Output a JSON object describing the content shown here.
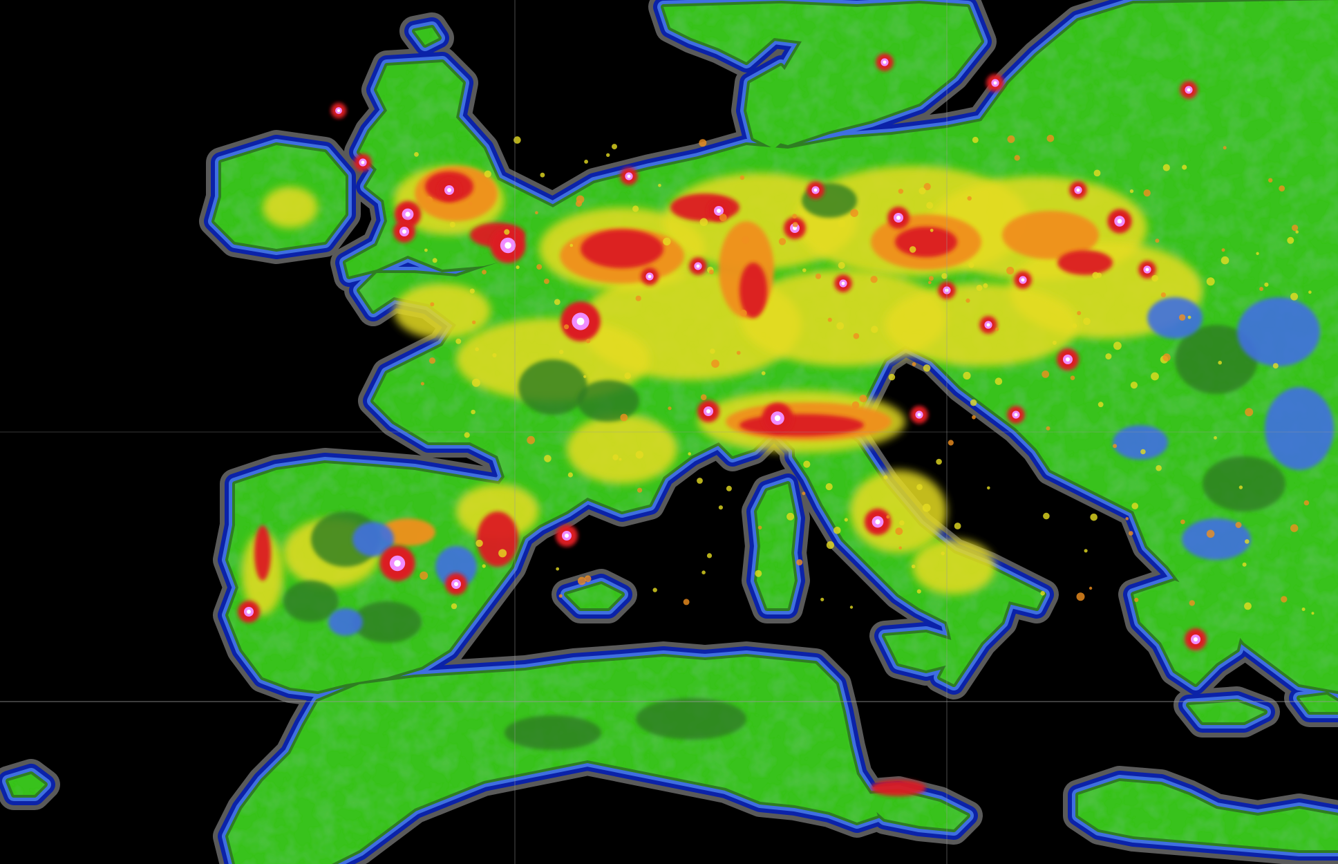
{
  "map": {
    "kind": "light-pollution brightness map of Europe and North Africa",
    "labels_visible": false,
    "legend_visible": false,
    "classes": [
      {
        "name": "ocean-dark",
        "color": "#000000"
      },
      {
        "name": "very-low",
        "color": "#5a5a5a"
      },
      {
        "name": "low",
        "color": "#0b22a8"
      },
      {
        "name": "low-moderate",
        "color": "#3f6fe0"
      },
      {
        "name": "moderate",
        "color": "#2f7d22"
      },
      {
        "name": "moderate-high",
        "color": "#39c21f"
      },
      {
        "name": "high",
        "color": "#e5dc22"
      },
      {
        "name": "very-high",
        "color": "#f0901f"
      },
      {
        "name": "intense",
        "color": "#dc1e24"
      },
      {
        "name": "peak",
        "color": "#f08cff"
      },
      {
        "name": "core",
        "color": "#ffffff"
      }
    ],
    "grid_lines": true,
    "grid_color": "#9a9a9a"
  }
}
